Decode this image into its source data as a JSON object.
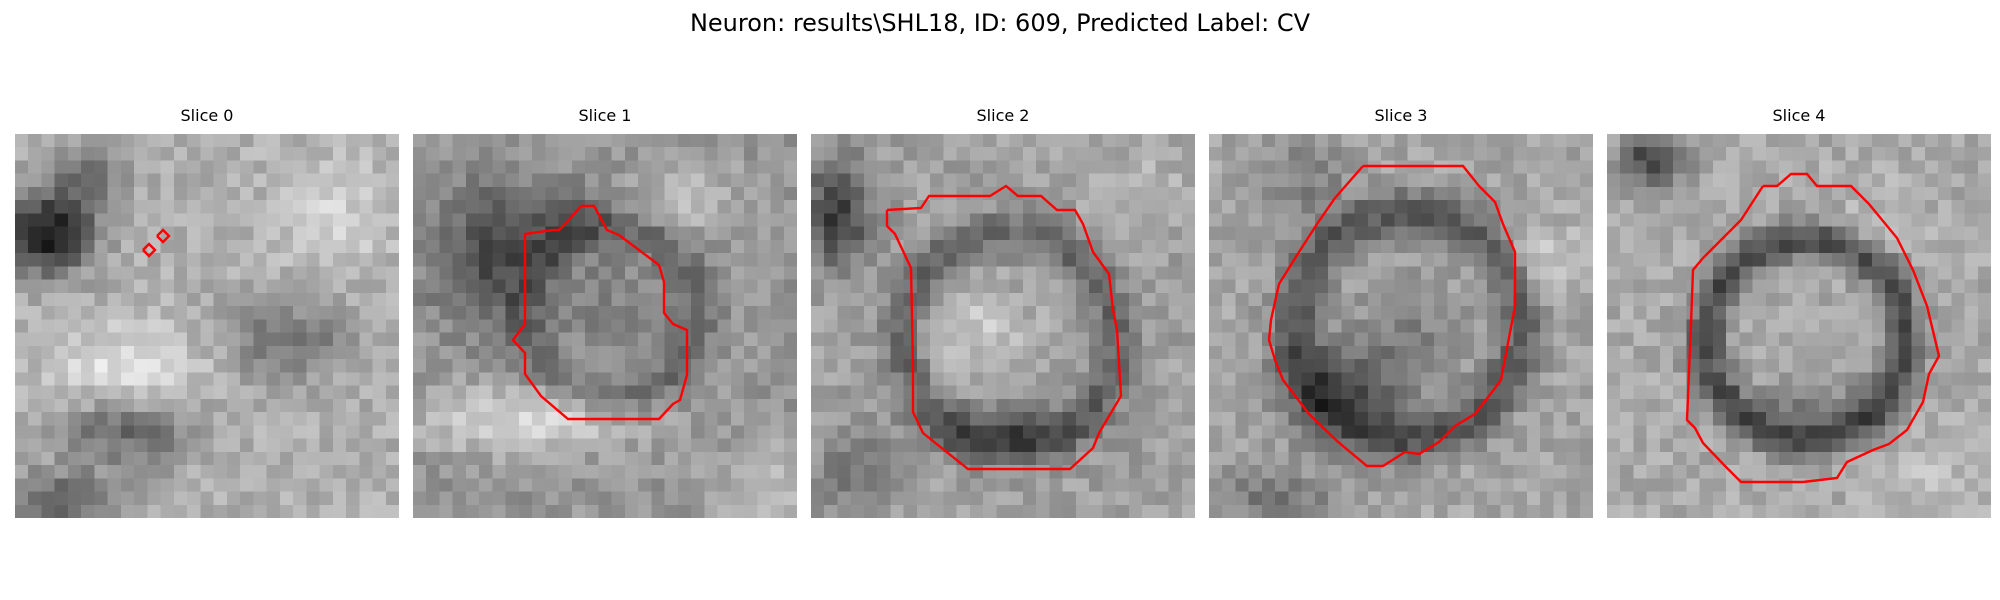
{
  "figure": {
    "title": "Neuron: results\\SHL18, ID: 609, Predicted Label: CV",
    "contour_color": "#ff0000",
    "colormap": "grayscale"
  },
  "slices": [
    {
      "title": "Slice 0"
    },
    {
      "title": "Slice 1"
    },
    {
      "title": "Slice 2"
    },
    {
      "title": "Slice 3"
    },
    {
      "title": "Slice 4"
    }
  ]
}
